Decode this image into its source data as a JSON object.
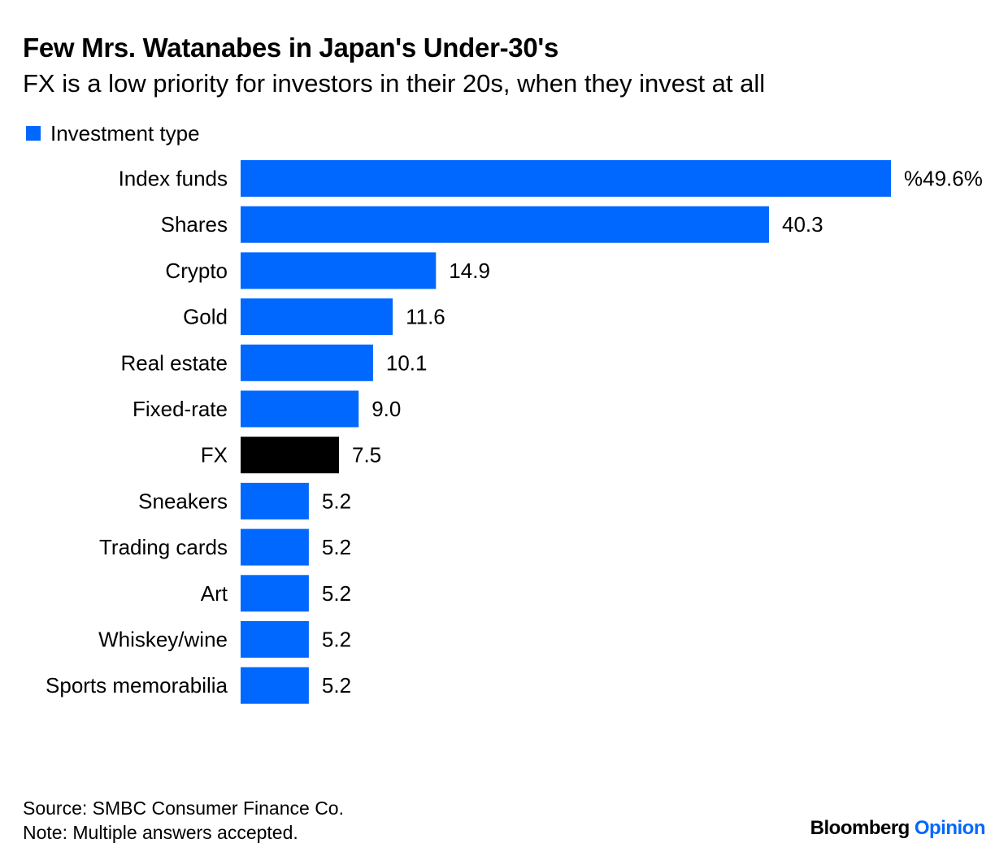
{
  "header": {
    "title": "Few Mrs. Watanabes in Japan's Under-30's",
    "subtitle": "FX is a low priority for investors in their 20s, when they invest at all"
  },
  "legend": {
    "label": "Investment type"
  },
  "colors": {
    "bar": "#0068ff",
    "highlight": "#000000",
    "text": "#000000",
    "brand_accent": "#0068ff"
  },
  "chart_data": {
    "type": "bar",
    "orientation": "horizontal",
    "categories": [
      "Index funds",
      "Shares",
      "Crypto",
      "Gold",
      "Real estate",
      "Fixed-rate",
      "FX",
      "Sneakers",
      "Trading cards",
      "Art",
      "Whiskey/wine",
      "Sports memorabilia"
    ],
    "series": [
      {
        "name": "Investment type",
        "values": [
          49.6,
          40.3,
          14.9,
          11.6,
          10.1,
          9.0,
          7.5,
          5.2,
          5.2,
          5.2,
          5.2,
          5.2
        ]
      }
    ],
    "data_labels": [
      "%49.6%",
      "40.3",
      "14.9",
      "11.6",
      "10.1",
      "9.0",
      "7.5",
      "5.2",
      "5.2",
      "5.2",
      "5.2",
      "5.2"
    ],
    "highlight_category": "FX",
    "title": "Few Mrs. Watanabes in Japan's Under-30's",
    "subtitle": "FX is a low priority for investors in their 20s, when they invest at all",
    "xlabel": "",
    "ylabel": "",
    "xlim": [
      0,
      49.6
    ],
    "grid": false,
    "legend_position": "top-left"
  },
  "footer": {
    "source": "Source: SMBC Consumer Finance Co.",
    "note": "Note: Multiple answers accepted.",
    "brand_name": "Bloomberg",
    "brand_suffix": "Opinion"
  }
}
